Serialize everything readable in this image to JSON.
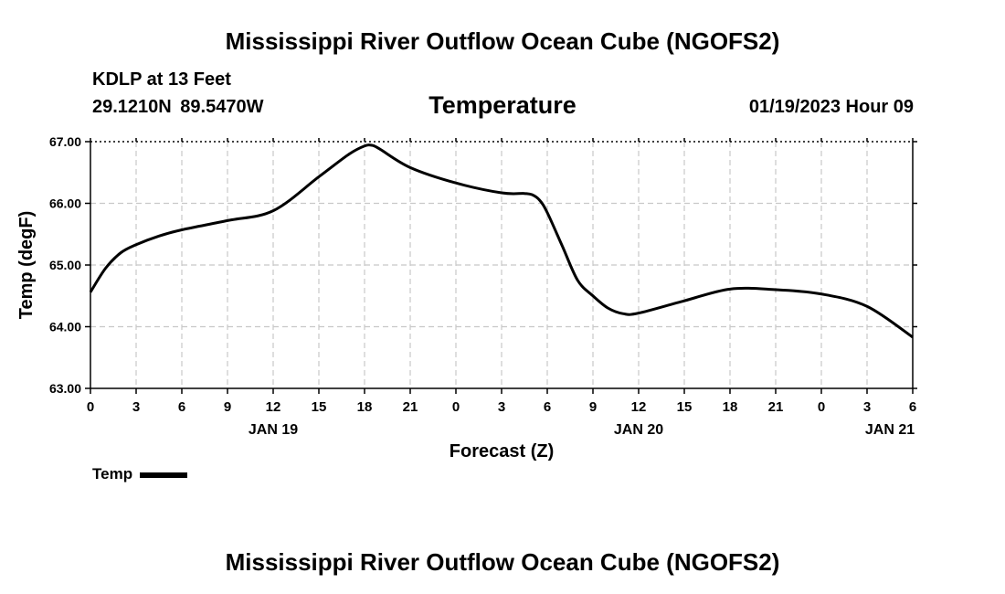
{
  "header": {
    "title": "Mississippi River Outflow Ocean Cube (NGOFS2)",
    "station": "KDLP at 13 Feet",
    "coordinates": "29.1210N  89.5470W",
    "variable": "Temperature",
    "datetime": "01/19/2023 Hour 09"
  },
  "footer": {
    "title": "Mississippi River Outflow Ocean Cube (NGOFS2)"
  },
  "legend": {
    "label": "Temp"
  },
  "colors": {
    "line": "#000000",
    "grid": "#c8c8c8"
  },
  "chart_data": {
    "type": "line",
    "title": "Temperature",
    "xlabel": "Forecast (Z)",
    "ylabel": "Temp (degF)",
    "xlim": [
      0,
      54
    ],
    "ylim": [
      63,
      67
    ],
    "y_ticks": [
      63,
      64,
      65,
      66,
      67
    ],
    "y_tick_labels": [
      "63.00",
      "64.00",
      "65.00",
      "66.00",
      "67.00"
    ],
    "x_tick_labels": [
      "0",
      "3",
      "6",
      "9",
      "12",
      "15",
      "18",
      "21",
      "0",
      "3",
      "6",
      "9",
      "12",
      "15",
      "18",
      "21",
      "0",
      "3",
      "6"
    ],
    "date_labels": [
      {
        "label": "JAN 19",
        "hour": 12
      },
      {
        "label": "JAN 20",
        "hour": 36
      },
      {
        "label": "JAN 21",
        "hour": 52.5
      }
    ],
    "grid": true,
    "series": [
      {
        "name": "Temp",
        "x": [
          0,
          1,
          2,
          3,
          4.5,
          6,
          9,
          12,
          15,
          17,
          18,
          18.5,
          19,
          21,
          24,
          27,
          28.5,
          29,
          29.5,
          30,
          31,
          32,
          33,
          34,
          35,
          36,
          39,
          42,
          45,
          48,
          51,
          54
        ],
        "y": [
          64.56,
          64.95,
          65.2,
          65.33,
          65.47,
          65.57,
          65.72,
          65.88,
          66.43,
          66.8,
          66.93,
          66.94,
          66.88,
          66.58,
          66.33,
          66.17,
          66.16,
          66.14,
          66.05,
          65.85,
          65.3,
          64.75,
          64.5,
          64.3,
          64.21,
          64.22,
          64.42,
          64.61,
          64.6,
          64.53,
          64.33,
          63.83
        ]
      }
    ]
  }
}
